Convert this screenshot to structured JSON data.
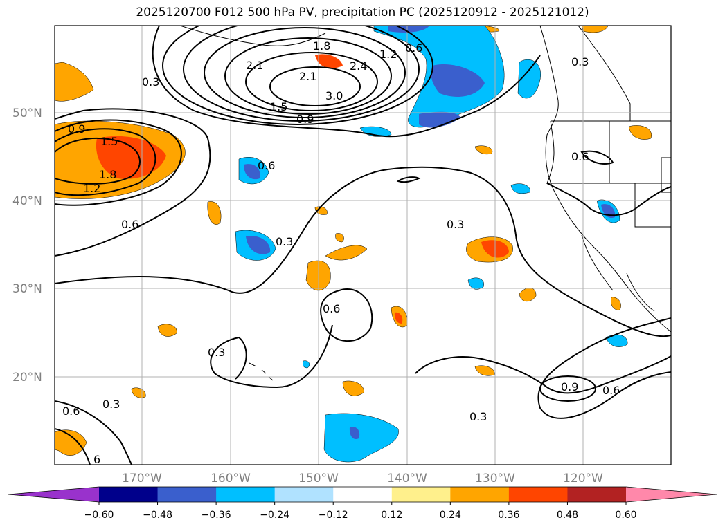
{
  "title": "2025120700 F012 500 hPa PV, precipitation PC (2025120912 - 2025121012)",
  "lat_labels": [
    "50°N",
    "40°N",
    "30°N",
    "20°N"
  ],
  "lon_labels": [
    "170°W",
    "160°W",
    "150°W",
    "140°W",
    "130°W",
    "120°W"
  ],
  "contour_labels": [
    "0.3",
    "0.6",
    "0.9",
    "1.2",
    "1.5",
    "1.8",
    "2.1",
    "2.4",
    "3.0",
    "6"
  ],
  "colorbar": {
    "ticks": [
      "−0.60",
      "−0.48",
      "−0.36",
      "−0.24",
      "−0.12",
      "0.12",
      "0.24",
      "0.36",
      "0.48",
      "0.60"
    ],
    "colors": [
      "#9932cc",
      "#00008b",
      "#3a5fcd",
      "#00bfff",
      "#b0e2ff",
      "#ffffff",
      "#fff08c",
      "#ffa500",
      "#ff4500",
      "#b22222",
      "#ff88aa"
    ]
  },
  "colors": {
    "orange": "#ffa500",
    "red": "#ff4500",
    "lightblue": "#00bfff",
    "blue": "#3a5fcd",
    "grid": "#b0b0b0"
  }
}
